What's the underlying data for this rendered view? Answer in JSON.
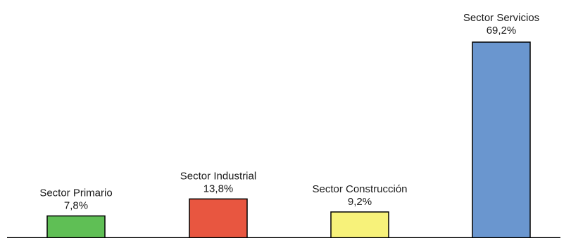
{
  "chart_data": {
    "type": "bar",
    "title": "",
    "xlabel": "",
    "ylabel": "",
    "ylim": [
      0,
      69.2
    ],
    "grid": false,
    "legend": "none",
    "categories": [
      "Sector Primario",
      "Sector Industrial",
      "Sector Construcción",
      "Sector Servicios"
    ],
    "values": [
      7.8,
      13.8,
      9.2,
      69.2
    ],
    "value_labels": [
      "7,8%",
      "13,8%",
      "9,2%",
      "69,2%"
    ],
    "colors": [
      "#5fbf55",
      "#e85640",
      "#f7f27a",
      "#6a96cf"
    ]
  }
}
